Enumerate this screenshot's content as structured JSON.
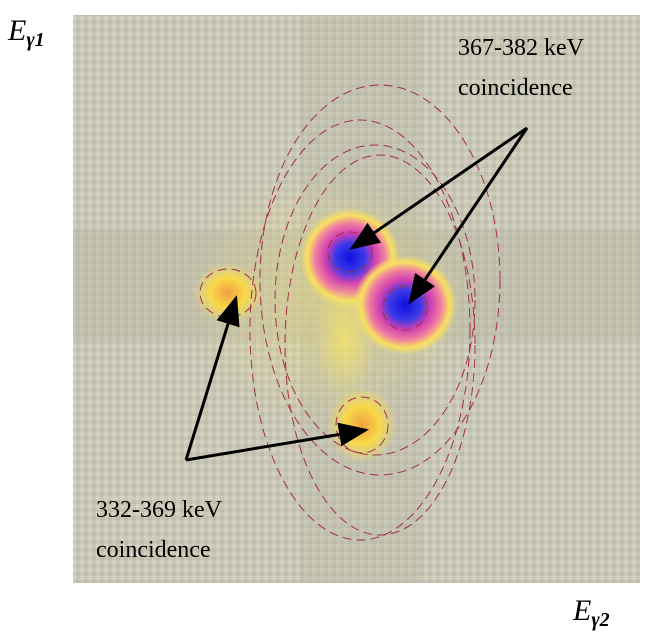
{
  "figure": {
    "y_axis_label": {
      "base": "E",
      "subscript": "γ1"
    },
    "x_axis_label": {
      "base": "E",
      "subscript": "γ2"
    },
    "annotations": [
      {
        "lines": [
          "367-382 keV",
          "coincidence"
        ]
      },
      {
        "lines": [
          "332-369 keV",
          "coincidence"
        ]
      }
    ]
  }
}
